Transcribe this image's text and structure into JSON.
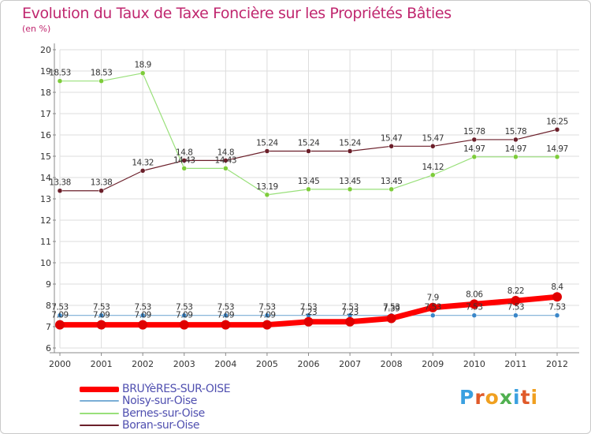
{
  "chart_data": {
    "type": "line",
    "title": "Evolution du Taux de Taxe Foncière sur les Propriétés Bâties",
    "subtitle": "(en %)",
    "categories": [
      "2000",
      "2001",
      "2002",
      "2003",
      "2004",
      "2005",
      "2006",
      "2007",
      "2008",
      "2009",
      "2010",
      "2011",
      "2012"
    ],
    "ylim": [
      6,
      20
    ],
    "yticks": [
      6,
      7,
      8,
      9,
      10,
      11,
      12,
      13,
      14,
      15,
      16,
      17,
      18,
      19,
      20
    ],
    "grid": true,
    "series": [
      {
        "name": "Boran-sur-Oise",
        "color": "#6b1f2a",
        "marker": "#6b1f2a",
        "values": [
          13.38,
          13.38,
          14.32,
          14.8,
          14.8,
          15.24,
          15.24,
          15.24,
          15.47,
          15.47,
          15.78,
          15.78,
          16.25
        ],
        "labels": [
          "13.38",
          "13.38",
          "14.32",
          "14.8",
          "14.8",
          "15.24",
          "15.24",
          "15.24",
          "15.47",
          "15.47",
          "15.78",
          "15.78",
          "16.25"
        ]
      },
      {
        "name": "Bernes-sur-Oise",
        "color": "#99e07a",
        "marker": "#7dcc3a",
        "values": [
          18.53,
          18.53,
          18.9,
          14.43,
          14.43,
          13.19,
          13.45,
          13.45,
          13.45,
          14.12,
          14.97,
          14.97,
          14.97
        ],
        "labels": [
          "18.53",
          "18.53",
          "18.9",
          "14.43",
          "14.43",
          "13.19",
          "13.45",
          "13.45",
          "13.45",
          "14.12",
          "14.97",
          "14.97",
          "14.97"
        ]
      },
      {
        "name": "Noisy-sur-Oise",
        "color": "#7aaed6",
        "marker": "#3a86c8",
        "values": [
          7.53,
          7.53,
          7.53,
          7.53,
          7.53,
          7.53,
          7.53,
          7.53,
          7.53,
          7.53,
          7.53,
          7.53,
          7.53
        ],
        "labels": [
          "7.53",
          "7.53",
          "7.53",
          "7.53",
          "7.53",
          "7.53",
          "7.53",
          "7.53",
          "7.53",
          "7.53",
          "7.53",
          "7.53",
          "7.53"
        ]
      },
      {
        "name": "BRUYèRES-SUR-OISE",
        "color": "#ff0000",
        "marker": "#e00000",
        "values": [
          7.09,
          7.09,
          7.09,
          7.09,
          7.09,
          7.09,
          7.23,
          7.23,
          7.39,
          7.9,
          8.06,
          8.22,
          8.4
        ],
        "labels": [
          "7.09",
          "7.09",
          "7.09",
          "7.09",
          "7.09",
          "7.09",
          "7.23",
          "7.23",
          "7.39",
          "7.9",
          "8.06",
          "8.22",
          "8.4"
        ]
      }
    ],
    "legend": [
      "BRUYèRES-SUR-OISE",
      "Noisy-sur-Oise",
      "Bernes-sur-Oise",
      "Boran-sur-Oise"
    ]
  },
  "logo": {
    "text": "Proxiti",
    "letters": [
      "P",
      "r",
      "o",
      "x",
      "i",
      "t",
      "i"
    ],
    "colors": [
      "#3aa0e0",
      "#e05a2a",
      "#f0a020",
      "#50b050",
      "#3aa0e0",
      "#e05a2a",
      "#f0a020"
    ]
  }
}
